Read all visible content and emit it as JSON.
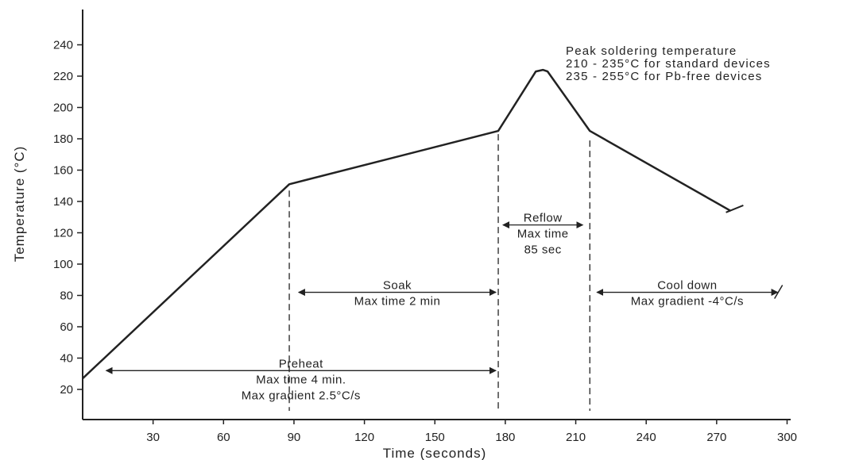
{
  "chart_data": {
    "type": "line",
    "title": "",
    "xlabel": "Time (seconds)",
    "ylabel": "Temperature (°C)",
    "xlim": [
      0,
      300
    ],
    "ylim": [
      10,
      250
    ],
    "x_ticks": [
      30,
      60,
      90,
      120,
      150,
      180,
      210,
      240,
      270,
      300
    ],
    "y_ticks": [
      20,
      40,
      60,
      80,
      100,
      120,
      140,
      160,
      180,
      200,
      220,
      240
    ],
    "grid": false,
    "series": [
      {
        "points": [
          [
            0,
            27
          ],
          [
            88,
            151
          ],
          [
            177,
            185
          ],
          [
            193,
            223
          ],
          [
            196,
            224
          ],
          [
            198,
            223
          ],
          [
            216,
            185
          ],
          [
            276,
            134
          ]
        ]
      }
    ],
    "tail_tick": [
      [
        276,
        134
      ],
      [
        280,
        137
      ]
    ],
    "phases": [
      {
        "id": "preheat",
        "lines": [
          "Preheat",
          "Max time 4 min.",
          "Max gradient 2.5°C/s"
        ],
        "x_from": 10,
        "x_to": 176,
        "y": 32
      },
      {
        "id": "soak",
        "lines": [
          "Soak",
          "Max time 2 min"
        ],
        "x_from": 92,
        "x_to": 176,
        "y": 82
      },
      {
        "id": "reflow",
        "lines": [
          "Reflow",
          "Max time",
          "85 sec"
        ],
        "x_from": 179,
        "x_to": 213,
        "y": 125
      },
      {
        "id": "cool-down",
        "lines": [
          "Cool down",
          "Max gradient -4°C/s"
        ],
        "x_from": 219,
        "x_to": 296,
        "y": 82
      }
    ],
    "phase_boundaries": [
      88,
      177,
      216
    ],
    "peak_note": [
      "Peak soldering temperature",
      "210 - 235°C for standard devices",
      "235 - 255°C for Pb-free devices"
    ]
  }
}
